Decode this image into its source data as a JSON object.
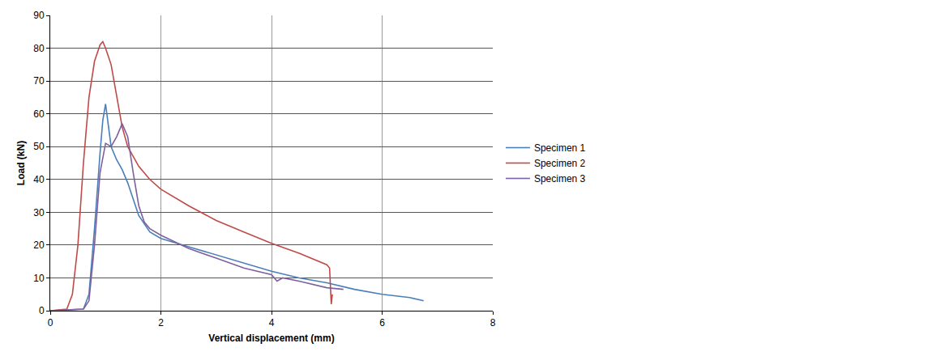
{
  "chart_data": {
    "type": "line",
    "x_label": "Vertical displacement (mm)",
    "y_label": "Load (kN)",
    "xlim": [
      0,
      8
    ],
    "xticks": [
      0,
      2,
      4,
      6,
      8
    ],
    "ylim": [
      0,
      90
    ],
    "yticks": [
      0,
      10,
      20,
      30,
      40,
      50,
      60,
      70,
      80,
      90
    ],
    "grid": true,
    "legend": "right",
    "series": [
      {
        "name": "Specimen 1",
        "color": "#4a7ebb",
        "x": [
          0,
          0.6,
          0.7,
          0.8,
          0.9,
          0.95,
          1.0,
          1.05,
          1.1,
          1.2,
          1.3,
          1.4,
          1.5,
          1.6,
          1.8,
          2.0,
          2.5,
          3.0,
          3.5,
          4.0,
          4.5,
          5.0,
          5.5,
          6.0,
          6.5,
          6.75
        ],
        "values": [
          0,
          0.5,
          5,
          25,
          48,
          58,
          63,
          57,
          50,
          46,
          43,
          39,
          34,
          29,
          24,
          22,
          19.5,
          17,
          14.5,
          12,
          10,
          8.5,
          6.5,
          5,
          4,
          3
        ]
      },
      {
        "name": "Specimen 2",
        "color": "#be4b48",
        "x": [
          0,
          0.3,
          0.4,
          0.5,
          0.6,
          0.7,
          0.8,
          0.9,
          0.95,
          1.0,
          1.1,
          1.2,
          1.3,
          1.4,
          1.6,
          1.8,
          2.0,
          2.5,
          3.0,
          3.5,
          4.0,
          4.5,
          5.0,
          5.05,
          5.08,
          5.1
        ],
        "values": [
          0,
          0.5,
          5,
          20,
          45,
          65,
          76,
          81,
          82,
          80,
          75,
          65,
          56,
          50,
          44,
          40,
          37,
          32,
          27.5,
          24,
          20.5,
          17.5,
          14,
          13,
          2,
          5
        ]
      },
      {
        "name": "Specimen 3",
        "color": "#7d60a0",
        "x": [
          0,
          0.6,
          0.7,
          0.8,
          0.9,
          1.0,
          1.1,
          1.2,
          1.3,
          1.4,
          1.5,
          1.6,
          1.7,
          1.8,
          2.0,
          2.5,
          3.0,
          3.5,
          4.0,
          4.1,
          4.2,
          4.5,
          5.0,
          5.3
        ],
        "values": [
          0,
          0.5,
          3,
          20,
          42,
          51,
          50,
          53,
          57,
          53,
          42,
          32,
          27,
          25,
          23,
          19,
          16,
          13,
          11,
          9,
          10,
          9,
          7,
          6.5
        ]
      }
    ]
  }
}
